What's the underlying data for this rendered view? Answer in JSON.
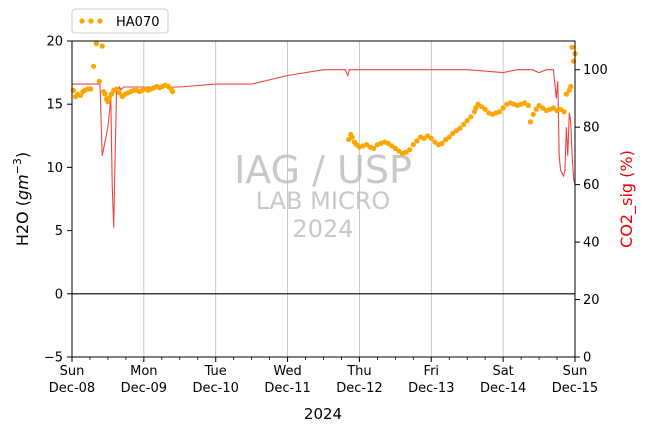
{
  "chart_data": {
    "type": "line",
    "xlabel": "2024",
    "ylabel_left": "H2O (gm⁻³)",
    "ylabel_left_parts": {
      "base": "H2O (",
      "italic": "gm",
      "sup": "−3",
      "close": ")"
    },
    "ylabel_right": "CO2_sig (%)",
    "ylim_left": [
      -5,
      20
    ],
    "ylim_right": [
      0,
      110
    ],
    "xlim_days": [
      0,
      7
    ],
    "x_ticks": [
      {
        "day": 0,
        "line1": "Sun",
        "line2": "Dec-08"
      },
      {
        "day": 1,
        "line1": "Mon",
        "line2": "Dec-09"
      },
      {
        "day": 2,
        "line1": "Tue",
        "line2": "Dec-10"
      },
      {
        "day": 3,
        "line1": "Wed",
        "line2": "Dec-11"
      },
      {
        "day": 4,
        "line1": "Thu",
        "line2": "Dec-12"
      },
      {
        "day": 5,
        "line1": "Fri",
        "line2": "Dec-13"
      },
      {
        "day": 6,
        "line1": "Sat",
        "line2": "Dec-14"
      },
      {
        "day": 7,
        "line1": "Sun",
        "line2": "Dec-15"
      }
    ],
    "y_ticks_left": [
      "−5",
      "0",
      "5",
      "10",
      "15",
      "20"
    ],
    "y_tick_values_left": [
      -5,
      0,
      5,
      10,
      15,
      20
    ],
    "y_ticks_right": [
      "0",
      "20",
      "40",
      "60",
      "80",
      "100"
    ],
    "y_tick_values_right": [
      0,
      20,
      40,
      60,
      80,
      100
    ],
    "grid": "vertical",
    "zero_line": 0,
    "legend": {
      "position": "top-left, above plot",
      "entries": [
        "HA070"
      ]
    },
    "watermark": [
      "IAG / USP",
      "LAB MICRO",
      "2024"
    ],
    "colors": {
      "h2o": "#FFA500",
      "co2": "#EE4444",
      "co2_label": "#EE0000",
      "grid": "#BBBBBB",
      "watermark": "#C8C8C8"
    },
    "series": [
      {
        "name": "HA070",
        "axis": "left",
        "style": "dots",
        "x": [
          0.02,
          0.05,
          0.08,
          0.12,
          0.15,
          0.18,
          0.22,
          0.26,
          0.3,
          0.34,
          0.38,
          0.42,
          0.44,
          0.46,
          0.48,
          0.5,
          0.52,
          0.55,
          0.58,
          0.62,
          0.66,
          0.7,
          0.74,
          0.78,
          0.82,
          0.86,
          0.9,
          0.94,
          0.98,
          1.02,
          1.06,
          1.1,
          1.14,
          1.18,
          1.22,
          1.26,
          1.3,
          1.34,
          1.38,
          1.4,
          3.85,
          3.88,
          3.9,
          3.93,
          3.96,
          4.0,
          4.05,
          4.1,
          4.15,
          4.2,
          4.25,
          4.3,
          4.35,
          4.4,
          4.45,
          4.5,
          4.55,
          4.6,
          4.65,
          4.7,
          4.75,
          4.8,
          4.85,
          4.9,
          4.95,
          5.0,
          5.05,
          5.1,
          5.15,
          5.2,
          5.25,
          5.3,
          5.35,
          5.4,
          5.45,
          5.5,
          5.55,
          5.6,
          5.62,
          5.65,
          5.7,
          5.75,
          5.8,
          5.85,
          5.9,
          5.95,
          6.0,
          6.05,
          6.1,
          6.15,
          6.2,
          6.25,
          6.3,
          6.35,
          6.38,
          6.42,
          6.46,
          6.5,
          6.55,
          6.6,
          6.65,
          6.7,
          6.75,
          6.8,
          6.85,
          6.88,
          6.92,
          6.94,
          6.96,
          6.98,
          7.0
        ],
        "y": [
          16.1,
          15.6,
          15.8,
          15.7,
          16.0,
          16.1,
          16.2,
          16.2,
          18.0,
          19.8,
          16.8,
          19.6,
          16.0,
          15.8,
          15.4,
          15.2,
          15.5,
          15.8,
          16.1,
          16.2,
          15.9,
          15.6,
          15.8,
          15.9,
          16.0,
          16.1,
          16.1,
          16.0,
          16.1,
          16.2,
          16.1,
          16.2,
          16.3,
          16.4,
          16.3,
          16.4,
          16.5,
          16.4,
          16.2,
          16.0,
          12.2,
          12.6,
          12.4,
          12.0,
          11.8,
          11.6,
          11.7,
          11.8,
          11.6,
          11.5,
          11.8,
          11.9,
          12.0,
          11.9,
          11.7,
          11.5,
          11.3,
          11.1,
          11.2,
          11.4,
          11.8,
          12.1,
          12.4,
          12.3,
          12.5,
          12.3,
          12.0,
          11.8,
          11.9,
          12.2,
          12.4,
          12.7,
          12.9,
          13.1,
          13.4,
          13.7,
          14.0,
          14.4,
          14.7,
          15.0,
          14.8,
          14.6,
          14.3,
          14.2,
          14.3,
          14.4,
          14.7,
          15.0,
          15.1,
          15.0,
          14.9,
          15.0,
          15.1,
          14.9,
          13.6,
          14.2,
          14.6,
          14.9,
          14.7,
          14.5,
          14.6,
          14.7,
          14.5,
          14.6,
          14.4,
          15.8,
          16.1,
          16.4,
          19.5,
          18.4,
          19.0
        ]
      },
      {
        "name": "CO2_sig",
        "axis": "right",
        "style": "line",
        "x": [
          0,
          0.3,
          0.36,
          0.39,
          0.42,
          0.5,
          0.54,
          0.55,
          0.56,
          0.58,
          0.6,
          0.62,
          0.64,
          0.66,
          0.68,
          0.72,
          0.8,
          1.0,
          1.5,
          2.0,
          2.5,
          3.0,
          3.5,
          3.7,
          3.8,
          3.82,
          3.84,
          3.86,
          3.9,
          4.0,
          4.2,
          4.5,
          4.8,
          5.0,
          5.5,
          6.0,
          6.2,
          6.4,
          6.5,
          6.6,
          6.7,
          6.72,
          6.74,
          6.76,
          6.78,
          6.8,
          6.82,
          6.84,
          6.86,
          6.88,
          6.9,
          6.92,
          6.94,
          6.96,
          6.98,
          7.0
        ],
        "y": [
          95,
          95,
          95,
          95,
          70,
          80,
          90,
          75,
          60,
          45,
          70,
          93,
          92,
          94,
          93,
          94,
          94,
          94,
          94,
          95,
          95,
          98,
          100,
          100,
          100,
          99,
          98,
          100,
          100,
          100,
          100,
          100,
          100,
          100,
          100,
          99,
          100,
          100,
          99,
          100,
          100,
          95,
          90,
          96,
          70,
          65,
          64,
          63,
          65,
          80,
          70,
          85,
          82,
          70,
          62,
          60
        ]
      }
    ]
  }
}
